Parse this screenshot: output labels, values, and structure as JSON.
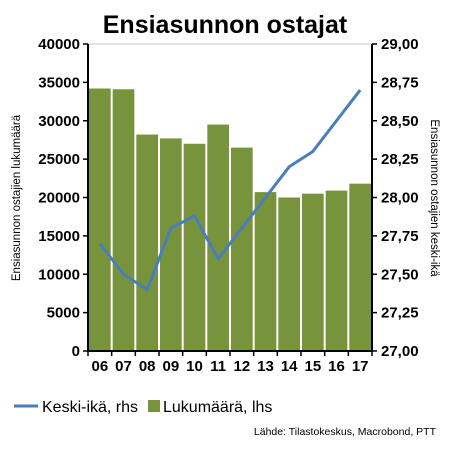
{
  "chart_data": {
    "type": "bar",
    "title": "Ensiasunnon ostajat",
    "categories": [
      "06",
      "07",
      "08",
      "09",
      "10",
      "11",
      "12",
      "13",
      "14",
      "15",
      "16",
      "17"
    ],
    "series": [
      {
        "name": "Lukumäärä, lhs",
        "type": "bar",
        "axis": "left",
        "color": "#77933c",
        "values": [
          34200,
          34100,
          28200,
          27700,
          27000,
          29500,
          26500,
          20700,
          20000,
          20500,
          20900,
          21800
        ]
      },
      {
        "name": "Keski-ikä, rhs",
        "type": "line",
        "axis": "right",
        "color": "#4a7ebb",
        "values": [
          27.7,
          27.5,
          27.4,
          27.8,
          27.88,
          27.6,
          27.8,
          28.0,
          28.2,
          28.3,
          28.5,
          28.7
        ]
      }
    ],
    "ylabel_left": "Ensiasunnon ostajien lukumäärä",
    "ylabel_right": "Ensiasunnon ostajien keski-ikä",
    "ylim_left": [
      0,
      40000
    ],
    "ylim_right": [
      27.0,
      29.0
    ],
    "yticks_left": [
      "0",
      "5000",
      "10000",
      "15000",
      "20000",
      "25000",
      "30000",
      "35000",
      "40000"
    ],
    "yticks_right": [
      "27,00",
      "27,25",
      "27,50",
      "27,75",
      "28,00",
      "28,25",
      "28,50",
      "28,75",
      "29,00"
    ],
    "grid": false,
    "legend_position": "bottom",
    "source": "Lähde: Tilastokeskus, Macrobond, PTT"
  }
}
